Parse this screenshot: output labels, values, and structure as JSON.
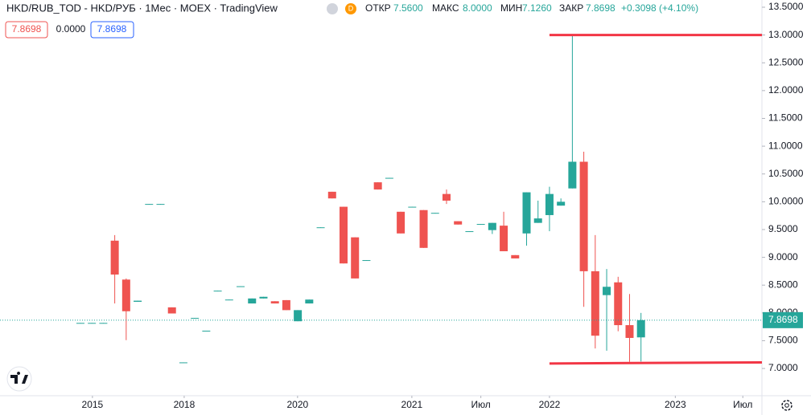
{
  "chart_data": {
    "type": "candlestick",
    "header": {
      "symbol": "HKD/RUB_TOD - HKD/РУБ · 1Мес · MOEX · TradingView",
      "badge": "D",
      "open_label": "ОТКР",
      "open": "7.5600",
      "high_label": "МАКС",
      "high": "8.0000",
      "low_label": "МИН",
      "low": "7.1260",
      "close_label": "ЗАКР",
      "close": "7.8698",
      "change": "+0.3098 (+4.10%)"
    },
    "info_boxes": [
      "0.0000"
    ],
    "up_color": "#26a69a",
    "down_color": "#ef5350",
    "x": [
      0,
      1,
      2,
      3,
      4,
      5,
      6,
      7,
      8,
      9,
      10,
      11,
      12,
      13,
      14,
      15,
      16,
      17,
      18,
      19,
      20,
      21,
      22,
      23,
      24,
      25,
      26,
      27,
      28,
      29,
      30,
      31,
      32,
      33,
      34,
      35,
      36,
      37,
      38,
      39,
      40,
      41,
      42,
      43,
      44,
      45,
      46,
      47,
      48,
      49
    ],
    "open": [
      7.81,
      7.81,
      7.81,
      9.3,
      8.6,
      8.2,
      9.95,
      9.95,
      8.1,
      7.1,
      7.9,
      7.67,
      8.39,
      8.23,
      8.47,
      8.17,
      8.26,
      8.21,
      8.23,
      7.85,
      8.17,
      9.53,
      10.18,
      9.91,
      9.36,
      8.94,
      10.35,
      10.42,
      9.82,
      9.9,
      9.85,
      9.79,
      10.14,
      9.65,
      9.46,
      9.59,
      9.49,
      9.57,
      9.04,
      9.43,
      9.62,
      9.76,
      9.93,
      10.24,
      10.72,
      8.75,
      8.32,
      8.55,
      7.78,
      7.56
    ],
    "high": [
      7.82,
      7.82,
      7.82,
      9.4,
      8.62,
      8.22,
      9.96,
      9.96,
      8.1,
      7.11,
      7.91,
      7.68,
      8.4,
      8.24,
      8.48,
      8.26,
      8.29,
      8.21,
      8.23,
      8.05,
      8.24,
      9.54,
      10.18,
      9.91,
      9.36,
      8.95,
      10.35,
      10.43,
      9.82,
      9.91,
      9.85,
      9.8,
      10.22,
      9.65,
      9.47,
      9.6,
      9.62,
      9.82,
      9.04,
      10.17,
      10.02,
      10.27,
      10.06,
      13.0,
      10.9,
      9.4,
      8.79,
      8.65,
      8.34,
      8.0
    ],
    "low": [
      7.81,
      7.81,
      7.81,
      8.17,
      7.51,
      8.2,
      9.95,
      9.95,
      7.99,
      7.1,
      7.9,
      7.67,
      8.39,
      8.23,
      8.47,
      8.17,
      8.26,
      8.17,
      8.05,
      7.85,
      8.17,
      9.53,
      10.06,
      8.89,
      8.62,
      8.94,
      10.22,
      10.42,
      9.43,
      9.9,
      9.17,
      9.79,
      9.96,
      9.59,
      9.46,
      9.59,
      9.42,
      9.11,
      8.98,
      9.21,
      9.62,
      9.47,
      9.93,
      10.24,
      8.11,
      7.36,
      7.32,
      7.67,
      7.12,
      7.126
    ],
    "close": [
      7.82,
      7.82,
      7.82,
      8.69,
      8.03,
      8.22,
      9.96,
      9.96,
      7.99,
      7.11,
      7.91,
      7.68,
      8.4,
      8.24,
      8.48,
      8.26,
      8.29,
      8.17,
      8.05,
      8.05,
      8.24,
      9.54,
      10.06,
      8.89,
      8.62,
      8.95,
      10.22,
      10.43,
      9.43,
      9.91,
      9.17,
      9.8,
      10.02,
      9.59,
      9.47,
      9.6,
      9.62,
      9.11,
      8.98,
      10.17,
      9.7,
      10.14,
      10.0,
      10.72,
      8.75,
      7.59,
      8.47,
      7.78,
      7.55,
      7.8698
    ],
    "xlim": [
      -7.03,
      59.57
    ],
    "xticks": [
      {
        "value": 1.05,
        "label": "2015"
      },
      {
        "value": 9.07,
        "label": "2018"
      },
      {
        "value": 18.98,
        "label": "2020"
      },
      {
        "value": 28.97,
        "label": "2021"
      },
      {
        "value": 35.0,
        "label": "Июл"
      },
      {
        "value": 41.0,
        "label": "2022"
      },
      {
        "value": 52.0,
        "label": "2023"
      },
      {
        "value": 57.9,
        "label": "Июл"
      }
    ],
    "ylim": [
      6.51,
      13.63
    ],
    "yticks": [
      {
        "value": 7,
        "label": "7.0000"
      },
      {
        "value": 7.5,
        "label": "7.5000"
      },
      {
        "value": 8,
        "label": "8.0000"
      },
      {
        "value": 8.5,
        "label": "8.5000"
      },
      {
        "value": 9,
        "label": "9.0000"
      },
      {
        "value": 9.5,
        "label": "9.5000"
      },
      {
        "value": 10,
        "label": "10.0000"
      },
      {
        "value": 10.5,
        "label": "10.5000"
      },
      {
        "value": 11,
        "label": "11.0000"
      },
      {
        "value": 11.5,
        "label": "11.5000"
      },
      {
        "value": 12,
        "label": "12.0000"
      },
      {
        "value": 12.5,
        "label": "12.5000"
      },
      {
        "value": 13,
        "label": "13.0000"
      },
      {
        "value": 13.5,
        "label": "13.5000"
      }
    ],
    "drawings": [
      {
        "x": [
          41.0,
          59.57
        ],
        "y": [
          13.0,
          13.0
        ],
        "color": "#f23645"
      },
      {
        "x": [
          41.0,
          59.57
        ],
        "y": [
          7.09,
          7.11
        ],
        "color": "#f23645"
      }
    ]
  }
}
